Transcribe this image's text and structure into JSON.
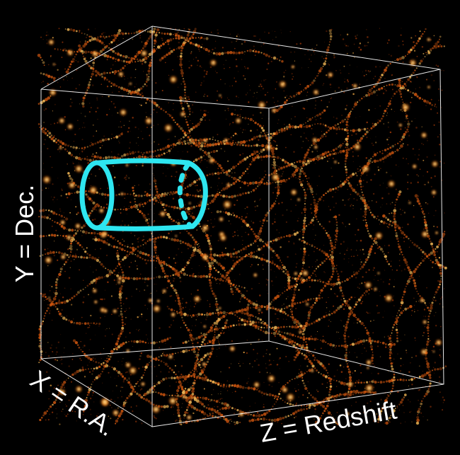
{
  "axes": {
    "y_label": "Y = Dec.",
    "x_label": "X = R.A.",
    "z_label": "Z = Redshift"
  },
  "colors": {
    "background": "#000000",
    "cube_edges": "#ffffff",
    "filament_glow": "#ff8c1a",
    "cylinder": "#2ee6f0"
  }
}
